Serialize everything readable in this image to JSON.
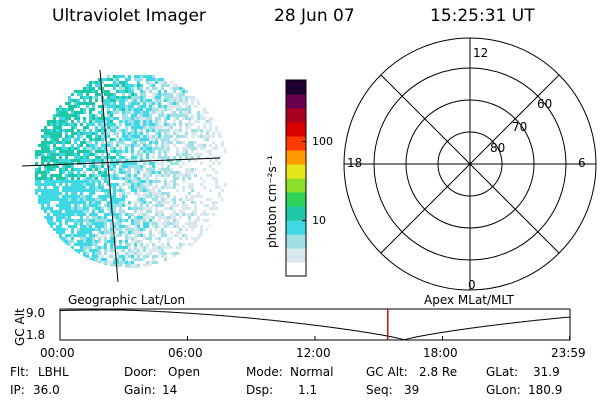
{
  "header": {
    "instrument": "Ultraviolet Imager",
    "date": "28 Jun 07",
    "time": "15:25:31 UT"
  },
  "colorbar": {
    "unit_label": "photon cm⁻²s⁻¹",
    "ticks": [
      "100",
      "10"
    ],
    "tick_values": [
      100,
      10
    ],
    "range": [
      2,
      600
    ],
    "colors": [
      "#ffffff",
      "#d9e8ee",
      "#9fe0e6",
      "#3fd8e4",
      "#1ec7a6",
      "#2ed45a",
      "#8ae02a",
      "#e6e619",
      "#ff9a00",
      "#ff3a00",
      "#d80000",
      "#a8001e",
      "#6a0050",
      "#1e0030"
    ]
  },
  "polar": {
    "mlt_labels": [
      "12",
      "18",
      "6",
      "0"
    ],
    "lat_labels": [
      "60",
      "70",
      "80"
    ],
    "lat_values": [
      60,
      70,
      80
    ]
  },
  "orbit_plot": {
    "left_label": "Geographic Lat/Lon",
    "right_label": "Apex MLat/MLT",
    "ylabel": "GC Alt",
    "yticks": [
      "9.0",
      "1.8"
    ],
    "ytick_values": [
      9.0,
      1.8
    ],
    "xticks": [
      "00:00",
      "06:00",
      "12:00",
      "18:00",
      "23:59"
    ],
    "xtick_hours": [
      0,
      6,
      12,
      18,
      23.983
    ],
    "current_hour": 15.425,
    "marker_color": "#cc0000"
  },
  "footer": {
    "row1": [
      {
        "label": "Flt:",
        "value": "LBHL"
      },
      {
        "label": "Door:",
        "value": "Open"
      },
      {
        "label": "Mode:",
        "value": "Normal"
      },
      {
        "label": "GC Alt:",
        "value": "2.8 Re"
      },
      {
        "label": "GLat:",
        "value": "31.9"
      }
    ],
    "row2": [
      {
        "label": "IP:",
        "value": "36.0"
      },
      {
        "label": "Gain:",
        "value": "14"
      },
      {
        "label": "Dsp:",
        "value": "1.1"
      },
      {
        "label": "Seq:",
        "value": "39"
      },
      {
        "label": "GLon:",
        "value": "180.9"
      }
    ]
  }
}
